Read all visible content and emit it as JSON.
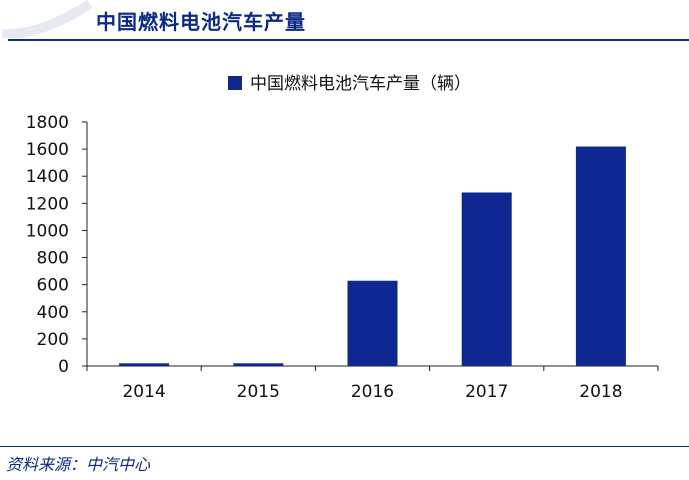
{
  "header": {
    "title": "中国燃料电池汽车产量"
  },
  "footer": {
    "source": "资料来源：中汽中心"
  },
  "colors": {
    "bar": "#0f2891",
    "brand": "#0b2a84"
  },
  "chart_data": {
    "type": "bar",
    "categories": [
      "2014",
      "2015",
      "2016",
      "2017",
      "2018"
    ],
    "series": [
      {
        "name": "中国燃料电池汽车产量（辆）",
        "values": [
          20,
          20,
          629,
          1280,
          1619
        ]
      }
    ],
    "ylim": [
      0,
      1800
    ],
    "yticks": [
      0,
      200,
      400,
      600,
      800,
      1000,
      1200,
      1400,
      1600,
      1800
    ],
    "legend_position": "top-center",
    "grid": false
  }
}
